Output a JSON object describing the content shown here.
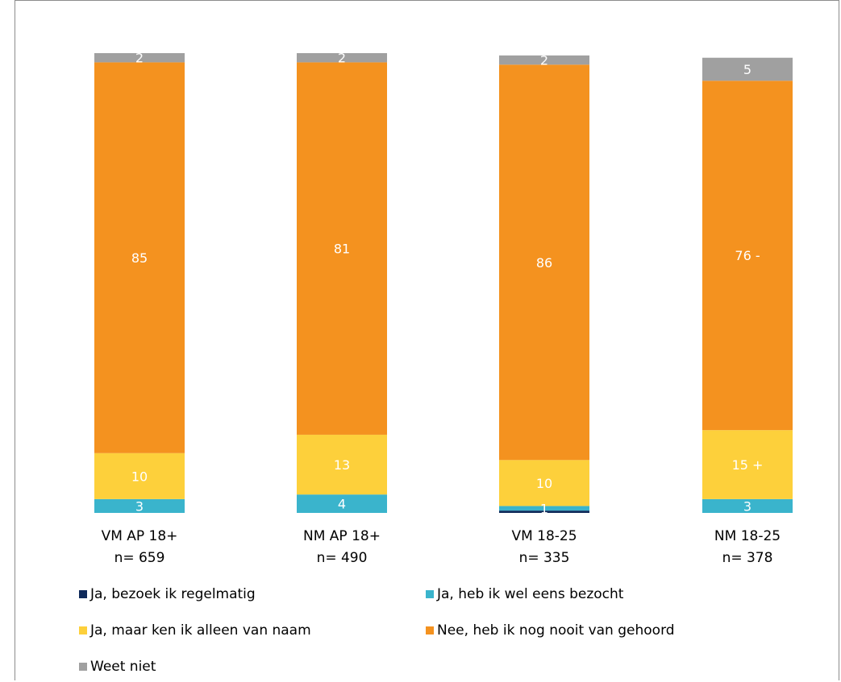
{
  "chart_data": {
    "type": "bar",
    "stacked": true,
    "percent": true,
    "categories": [
      "VM AP 18+",
      "NM AP 18+",
      "VM 18-25",
      "NM 18-25"
    ],
    "sample_sizes": [
      "n= 659",
      "n= 490",
      "n= 335",
      "n= 378"
    ],
    "series": [
      {
        "name": "Ja, bezoek ik regelmatig",
        "color": "#0f2a5a",
        "values": [
          0,
          0,
          0.5,
          0
        ],
        "labels": [
          "",
          "",
          "",
          ""
        ]
      },
      {
        "name": "Ja, heb ik wel eens bezocht",
        "color": "#3ab4cc",
        "values": [
          3,
          4,
          1,
          3
        ],
        "labels": [
          "3",
          "4",
          "1",
          "3"
        ]
      },
      {
        "name": "Ja, maar ken ik alleen van naam",
        "color": "#fdd03b",
        "values": [
          10,
          13,
          10,
          15
        ],
        "labels": [
          "10",
          "13",
          "10",
          "15 +"
        ]
      },
      {
        "name": "Nee, heb ik nog nooit van gehoord",
        "color": "#f4921f",
        "values": [
          85,
          81,
          86,
          76
        ],
        "labels": [
          "85",
          "81",
          "86",
          "76 -"
        ]
      },
      {
        "name": "Weet niet",
        "color": "#a0a0a0",
        "values": [
          2,
          2,
          2,
          5
        ],
        "labels": [
          "2",
          "2",
          "2",
          "5"
        ]
      }
    ],
    "legend_position": "bottom",
    "grid": false
  },
  "legend_order": [
    0,
    1,
    2,
    3,
    4
  ]
}
